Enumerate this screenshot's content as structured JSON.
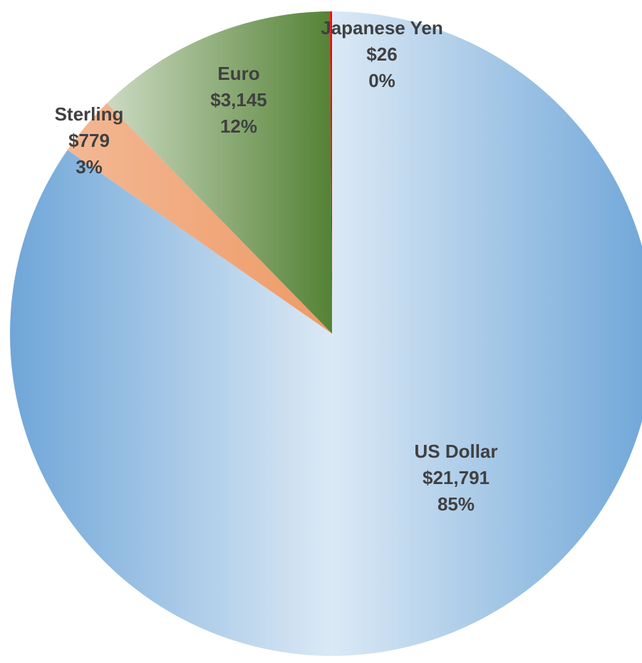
{
  "chart_data": {
    "type": "pie",
    "categories": [
      "US Dollar",
      "Sterling",
      "Euro",
      "Japanese Yen"
    ],
    "values": [
      21791,
      779,
      3145,
      26
    ],
    "value_labels": [
      "$21,791",
      "$779",
      "$3,145",
      "$26"
    ],
    "percent_labels": [
      "85%",
      "3%",
      "12%",
      "0%"
    ],
    "colors": [
      "#6fa6d8",
      "#ee9a66",
      "#548235",
      "#ff0000"
    ]
  }
}
